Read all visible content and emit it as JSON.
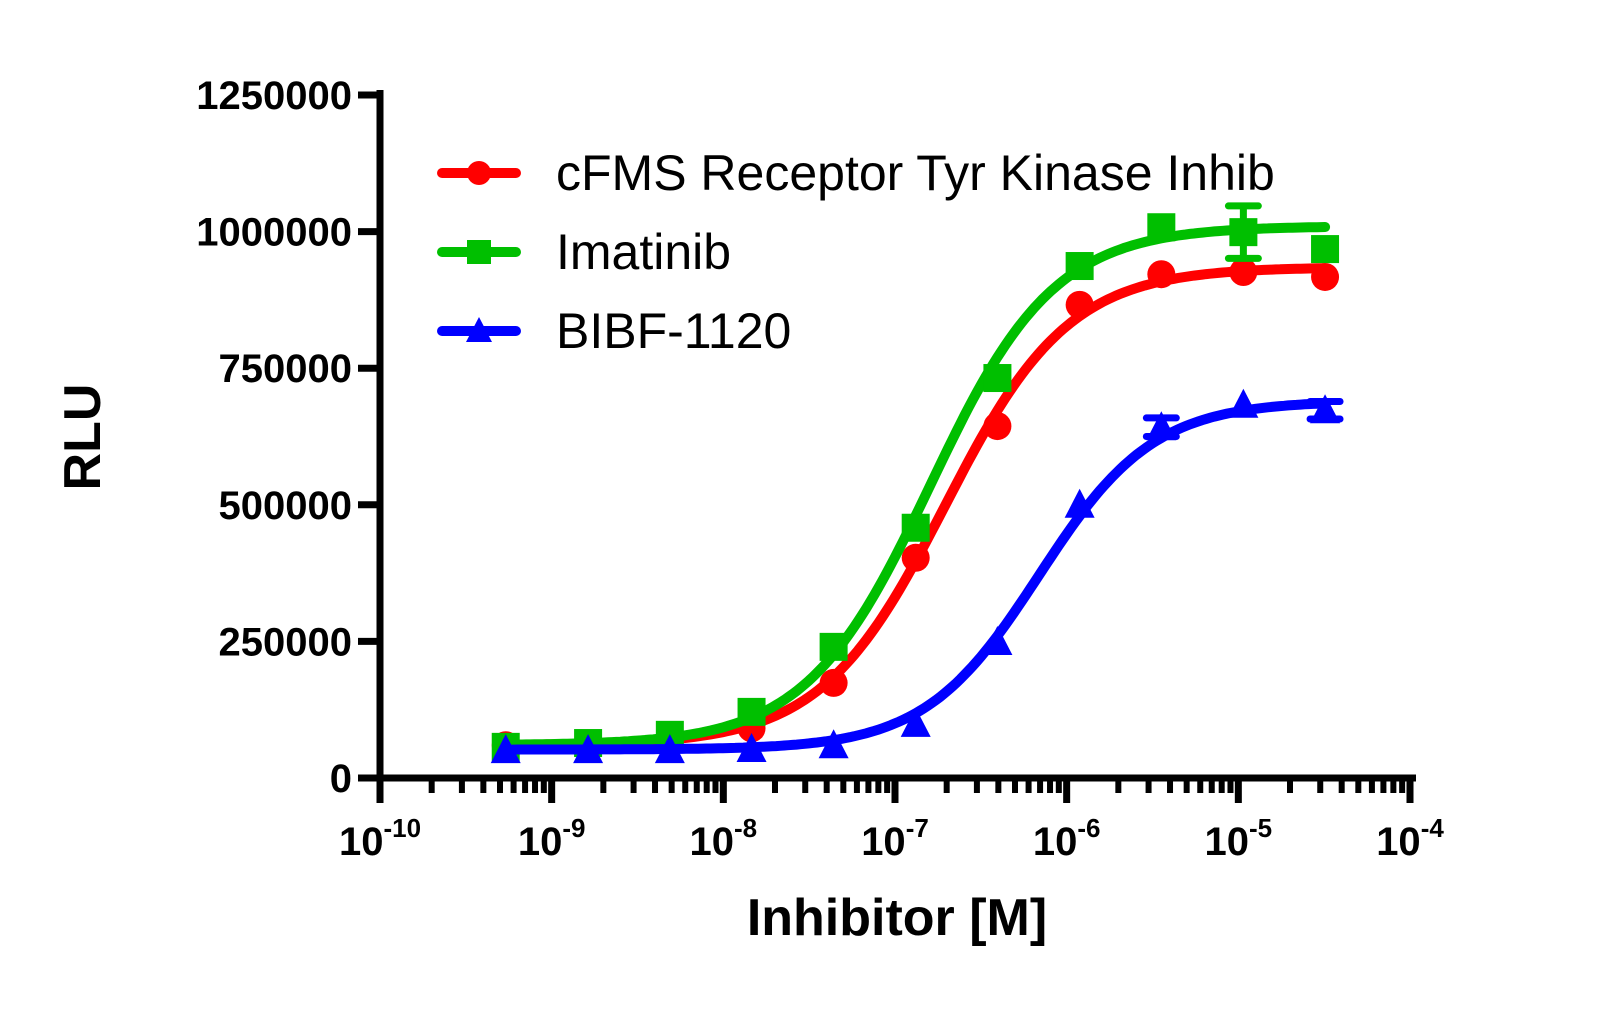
{
  "chart_data": {
    "type": "line",
    "title": "",
    "xlabel": "Inhibitor [M]",
    "ylabel": "RLU",
    "xscale": "log",
    "xlim": [
      1e-10,
      0.0001
    ],
    "ylim": [
      0,
      1250000
    ],
    "x_ticks": [
      {
        "base": "10",
        "exp": "-10"
      },
      {
        "base": "10",
        "exp": "-9"
      },
      {
        "base": "10",
        "exp": "-8"
      },
      {
        "base": "10",
        "exp": "-7"
      },
      {
        "base": "10",
        "exp": "-6"
      },
      {
        "base": "10",
        "exp": "-5"
      },
      {
        "base": "10",
        "exp": "-4"
      }
    ],
    "y_ticks": [
      "0",
      "250000",
      "500000",
      "750000",
      "1000000",
      "1250000"
    ],
    "grid": false,
    "legend_position": "top-left",
    "x": [
      5.4e-10,
      1.63e-09,
      4.88e-09,
      1.46e-08,
      4.39e-08,
      1.32e-07,
      3.95e-07,
      1.19e-06,
      3.56e-06,
      1.07e-05,
      3.2e-05
    ],
    "series": [
      {
        "name": "cFMS Receptor Tyr Kinase Inhib",
        "color": "#ff0000",
        "marker": "circle",
        "values": [
          60000,
          60000,
          70000,
          91000,
          174000,
          403000,
          644000,
          866000,
          922000,
          926000,
          917000
        ],
        "errors": [
          0,
          0,
          0,
          0,
          0,
          0,
          0,
          0,
          0,
          0,
          0
        ],
        "fit": {
          "bottom": 60000,
          "top": 935000,
          "ec50": 1.95e-07,
          "hill": 1.2
        }
      },
      {
        "name": "Imatinib",
        "color": "#00bf00",
        "marker": "square",
        "values": [
          57000,
          64000,
          79000,
          121000,
          240000,
          458000,
          732000,
          937000,
          1008000,
          999000,
          968000
        ],
        "errors": [
          0,
          0,
          0,
          0,
          0,
          0,
          0,
          0,
          0,
          48000,
          0
        ],
        "fit": {
          "bottom": 60000,
          "top": 1010000,
          "ec50": 1.6e-07,
          "hill": 1.2
        }
      },
      {
        "name": "BIBF-1120",
        "color": "#0000ff",
        "marker": "triangle",
        "values": [
          51000,
          51000,
          51000,
          53000,
          60000,
          99000,
          249000,
          500000,
          642000,
          683000,
          673000
        ],
        "errors": [
          0,
          0,
          0,
          0,
          0,
          0,
          0,
          0,
          17000,
          0,
          16000
        ],
        "fit": {
          "bottom": 52000,
          "top": 690000,
          "ec50": 6.9e-07,
          "hill": 1.3
        }
      }
    ]
  }
}
